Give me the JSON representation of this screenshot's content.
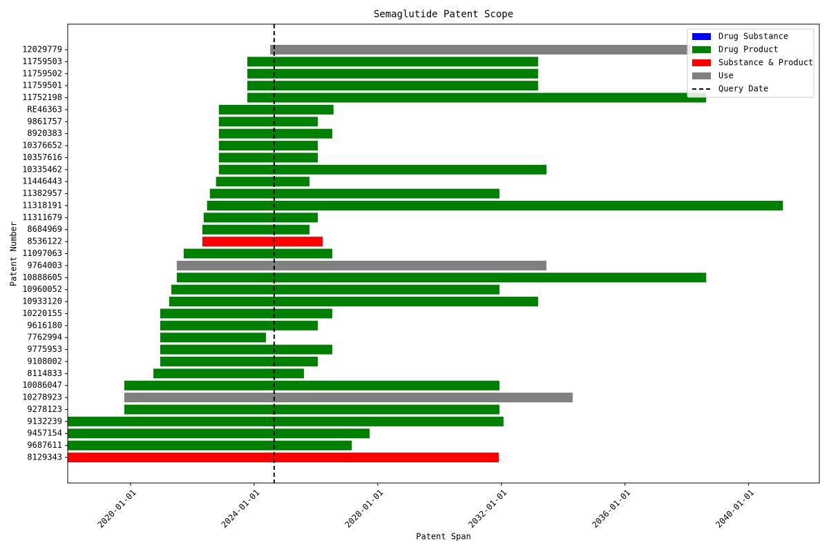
{
  "chart_data": {
    "type": "timeline-bar",
    "title": "Semaglutide Patent Scope",
    "x_label": "Patent Span",
    "y_label": "Patent Number",
    "categories": [
      "12029779",
      "11759503",
      "11759502",
      "11759501",
      "11752198",
      "RE46363",
      "9861757",
      "8920383",
      "10376652",
      "10357616",
      "10335462",
      "11446443",
      "11382957",
      "11318191",
      "11311679",
      "8684969",
      "8536122",
      "11097063",
      "9764003",
      "10888605",
      "10960052",
      "10933120",
      "10220155",
      "9616180",
      "7762994",
      "9775953",
      "9108002",
      "8114833",
      "10086047",
      "10278923",
      "9278123",
      "9132239",
      "9457154",
      "9687611",
      "8129343"
    ],
    "start": [
      "2024-07-08",
      "2023-10-12",
      "2023-10-12",
      "2023-10-12",
      "2023-10-12",
      "2022-11-10",
      "2022-11-10",
      "2022-11-10",
      "2022-11-10",
      "2022-11-10",
      "2022-11-10",
      "2022-10-07",
      "2022-07-26",
      "2022-06-23",
      "2022-05-14",
      "2022-04-29",
      "2022-04-29",
      "2021-09-20",
      "2021-06-30",
      "2021-06-30",
      "2021-04-26",
      "2021-04-01",
      "2020-12-16",
      "2020-12-16",
      "2020-12-16",
      "2020-12-16",
      "2020-12-16",
      "2020-09-27",
      "2019-10-19",
      "2019-10-19",
      "2019-10-19",
      "2017-12-19",
      "2017-12-19",
      "2017-12-19",
      "2017-12-19"
    ],
    "end": [
      "2038-07-30",
      "2033-03-10",
      "2033-03-10",
      "2033-03-10",
      "2038-08-18",
      "2026-07-27",
      "2026-01-22",
      "2026-07-12",
      "2026-01-22",
      "2026-01-22",
      "2033-06-17",
      "2025-10-16",
      "2031-12-09",
      "2041-02-10",
      "2026-01-22",
      "2025-10-16",
      "2026-03-21",
      "2026-07-12",
      "2033-06-17",
      "2038-08-18",
      "2031-12-09",
      "2033-03-10",
      "2026-07-12",
      "2026-01-22",
      "2024-05-19",
      "2026-07-12",
      "2026-01-22",
      "2025-08-11",
      "2031-12-09",
      "2034-04-22",
      "2031-12-09",
      "2032-01-26",
      "2027-09-27",
      "2027-02-28",
      "2031-12-02"
    ],
    "kind": [
      "Use",
      "Drug Product",
      "Drug Product",
      "Drug Product",
      "Drug Product",
      "Drug Product",
      "Drug Product",
      "Drug Product",
      "Drug Product",
      "Drug Product",
      "Drug Product",
      "Drug Product",
      "Drug Product",
      "Drug Product",
      "Drug Product",
      "Drug Product",
      "Substance & Product",
      "Drug Product",
      "Use",
      "Drug Product",
      "Drug Product",
      "Drug Product",
      "Drug Product",
      "Drug Product",
      "Drug Product",
      "Drug Product",
      "Drug Product",
      "Drug Product",
      "Drug Product",
      "Use",
      "Drug Product",
      "Drug Product",
      "Drug Product",
      "Drug Product",
      "Substance & Product"
    ],
    "legend_items": [
      {
        "name": "Drug Substance",
        "color": "#0000ff"
      },
      {
        "name": "Drug Product",
        "color": "#008000"
      },
      {
        "name": "Substance & Product",
        "color": "#ff0000"
      },
      {
        "name": "Use",
        "color": "#808080"
      }
    ],
    "query_date": {
      "name": "Query Date",
      "date": "2024-08-24"
    },
    "legend_position": "upper right",
    "xlim": [
      "2017-12-19",
      "2042-04-16"
    ],
    "xticks": [
      "2020-01-01",
      "2024-01-01",
      "2028-01-01",
      "2032-01-01",
      "2036-01-01",
      "2040-01-01"
    ]
  }
}
